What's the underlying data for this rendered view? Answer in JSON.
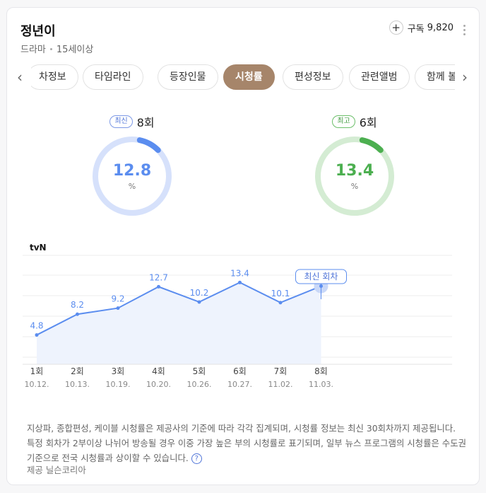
{
  "header": {
    "title": "정년이",
    "genre": "드라마",
    "rating": "15세이상",
    "subscribe_label": "구독",
    "subscriber_count": "9,820"
  },
  "tabs": [
    "차정보",
    "타임라인",
    "등장인물",
    "시청률",
    "편성정보",
    "관련앨범",
    "함께 볼"
  ],
  "active_tab": "시청률",
  "stats": {
    "latest": {
      "badge": "최신",
      "episode": "8회",
      "value": "12.8",
      "unit": "%",
      "color": "#5b8def"
    },
    "best": {
      "badge": "최고",
      "episode": "6회",
      "value": "13.4",
      "unit": "%",
      "color": "#4caf50"
    }
  },
  "chart_data": {
    "type": "area",
    "title": "tvN",
    "categories": [
      "1회",
      "2회",
      "3회",
      "4회",
      "5회",
      "6회",
      "7회",
      "8회"
    ],
    "dates": [
      "10.12.",
      "10.13.",
      "10.19.",
      "10.20.",
      "10.26.",
      "10.27.",
      "11.02.",
      "11.03."
    ],
    "values": [
      4.8,
      8.2,
      9.2,
      12.7,
      10.2,
      13.4,
      10.1,
      12.8
    ],
    "ylim": [
      0,
      19
    ],
    "annotation": "최신 회차",
    "grid": true,
    "color": "#5b8def"
  },
  "footnote": "지상파, 종합편성, 케이블 시청률은 제공사의 기준에 따라 각각 집계되며, 시청률 정보는 최신 30회차까지 제공됩니다. 특정 회차가 2부이상 나뉘어 방송될 경우 이중 가장 높은 부의 시청률로 표기되며, 일부 뉴스 프로그램의 시청률은 수도권 기준으로 전국 시청률과 상이할 수 있습니다.",
  "help_icon": "?",
  "provider": "제공 닐슨코리아"
}
